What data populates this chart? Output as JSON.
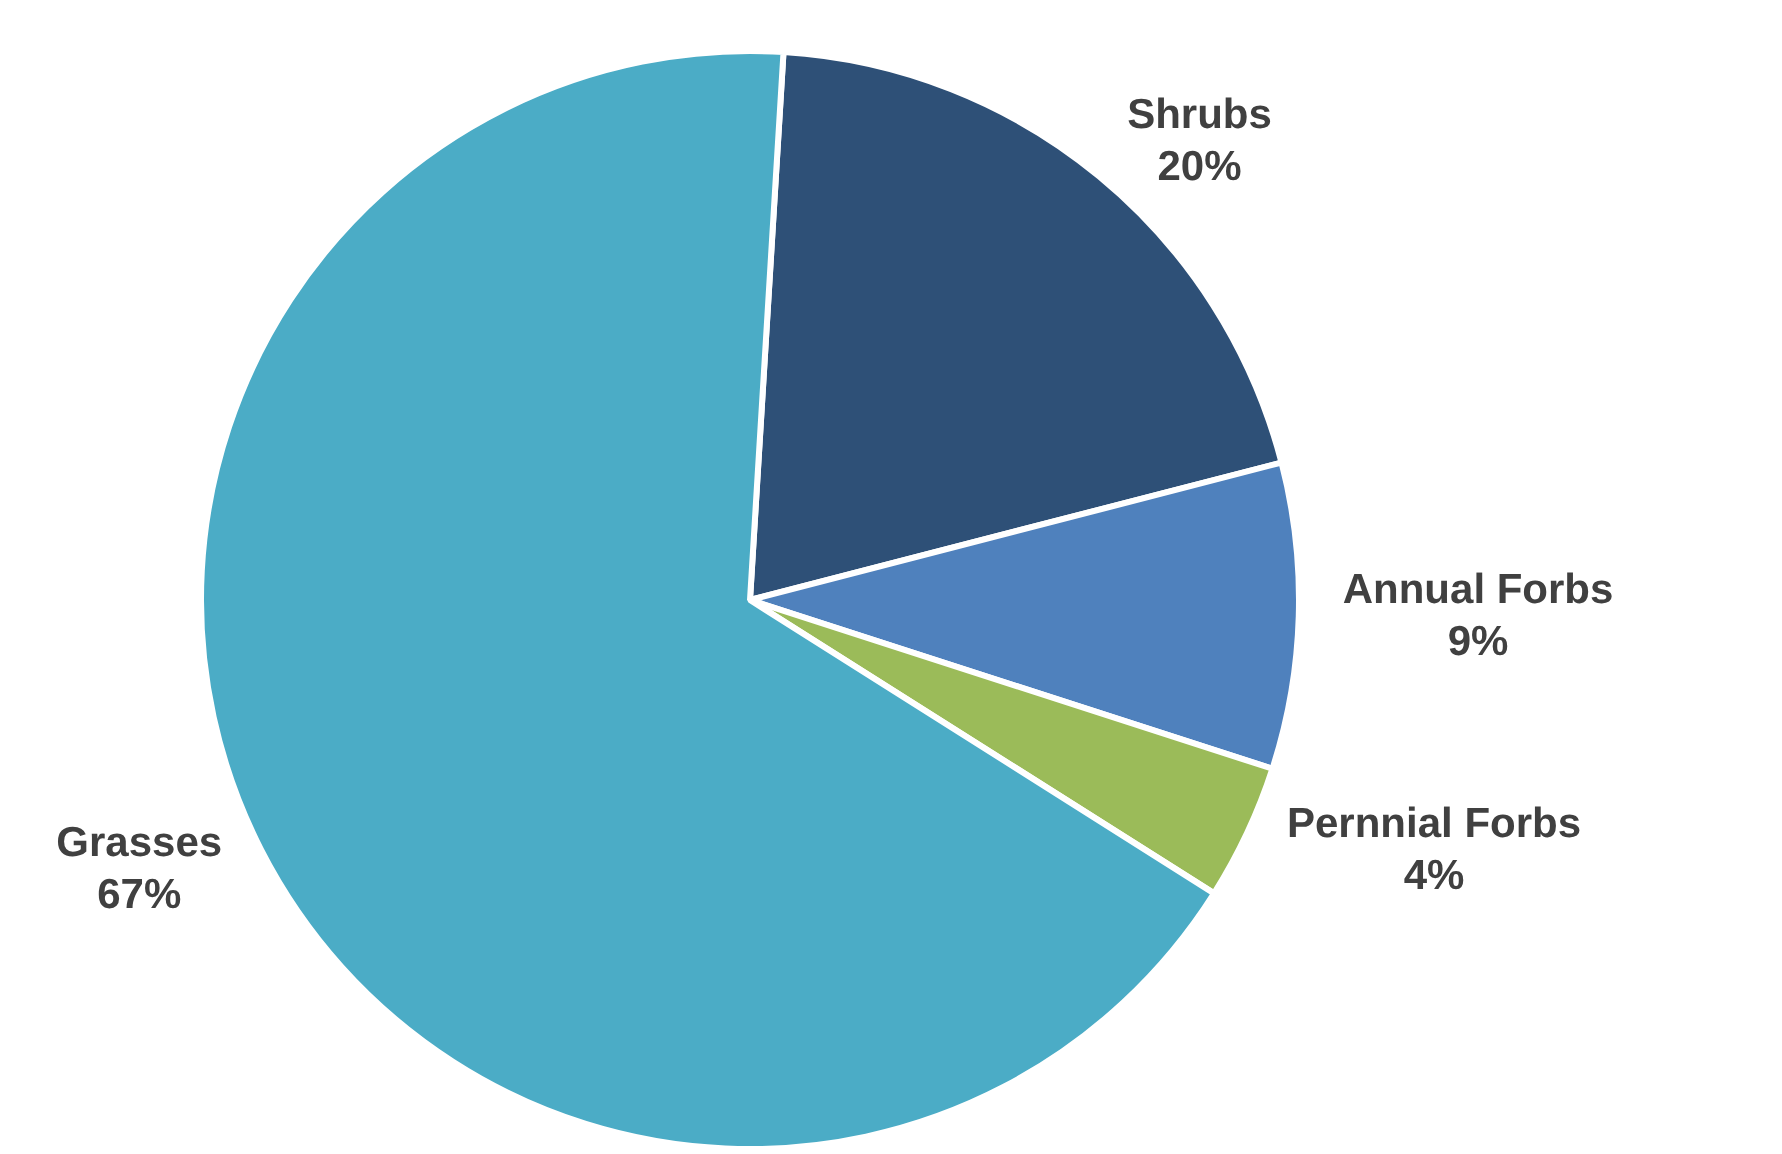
{
  "chart_data": {
    "type": "pie",
    "categories": [
      "Shrubs",
      "Annual Forbs",
      "Pernnial Forbs",
      "Grasses"
    ],
    "values": [
      20,
      9,
      4,
      67
    ],
    "colors": [
      "#2e5077",
      "#4f81bd",
      "#9bbb59",
      "#4bacc6"
    ],
    "value_labels": [
      "20%",
      "9%",
      "4%",
      "67%"
    ],
    "legend": false
  }
}
